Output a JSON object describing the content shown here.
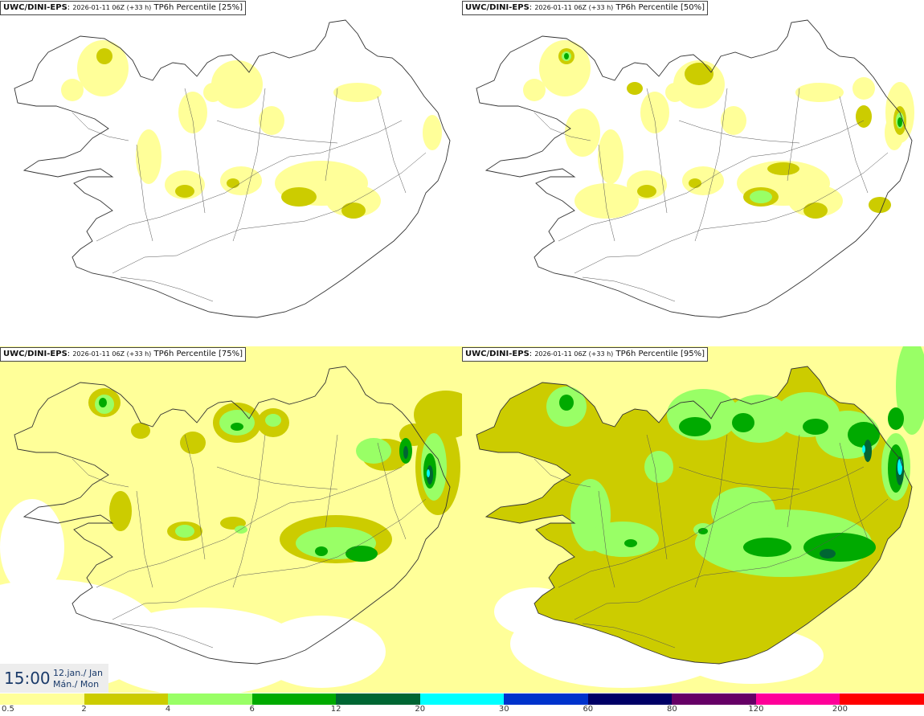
{
  "panels": [
    {
      "model": "UWC/DINI-EPS",
      "run": "2026-01-11 06Z (+33 h)",
      "field": "TP6h Percentile [25%]",
      "level": 0
    },
    {
      "model": "UWC/DINI-EPS",
      "run": "2026-01-11 06Z (+33 h)",
      "field": "TP6h Percentile [50%]",
      "level": 1
    },
    {
      "model": "UWC/DINI-EPS",
      "run": "2026-01-11 06Z (+33 h)",
      "field": "TP6h Percentile [75%]",
      "level": 2
    },
    {
      "model": "UWC/DINI-EPS",
      "run": "2026-01-11 06Z (+33 h)",
      "field": "TP6h Percentile [95%]",
      "level": 3
    }
  ],
  "valid_time": {
    "clock": "15:00",
    "date_line1": "12.jan./ Jan",
    "date_line2": "Mán./ Mon"
  },
  "legend": {
    "ticks": [
      "0.5",
      "2",
      "4",
      "6",
      "12",
      "20",
      "30",
      "60",
      "80",
      "120",
      "200"
    ],
    "colors": [
      "#ffff99",
      "#cccc00",
      "#99ff66",
      "#00aa00",
      "#006633",
      "#00ffff",
      "#0033cc",
      "#000066",
      "#660066",
      "#ff0099",
      "#ff0000"
    ]
  },
  "palette": {
    "light_yellow": "#ffff99",
    "olive": "#cccc00",
    "light_green": "#99ff66",
    "green": "#00aa00",
    "dark_green": "#006633",
    "cyan": "#00ffff",
    "coastline": "#333333"
  }
}
